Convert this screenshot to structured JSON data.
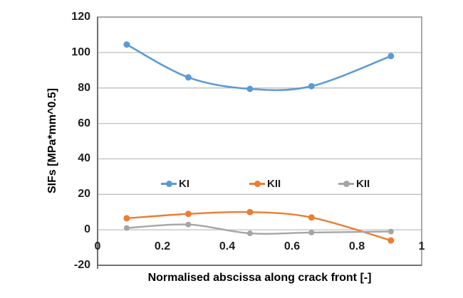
{
  "chart_data": {
    "type": "line",
    "title": "",
    "xlabel": "Normalised abscissa along crack front [-]",
    "ylabel": "SIFs [MPa*mm^0.5]",
    "xlim": [
      0,
      1
    ],
    "ylim": [
      -20,
      120
    ],
    "grid": "horizontal-only",
    "smoothed_lines": true,
    "legend_position": "inside-plot-middle",
    "x": [
      0.09,
      0.28,
      0.47,
      0.66,
      0.905
    ],
    "series": [
      {
        "name": "KI",
        "color": "#5B9BD5",
        "values": [
          104.5,
          86,
          79.5,
          81,
          98
        ]
      },
      {
        "name": "KII",
        "color": "#ED7D31",
        "values": [
          6.5,
          9,
          10,
          7,
          -6
        ]
      },
      {
        "name": "KII",
        "color": "#A5A5A5",
        "values": [
          1,
          3,
          -2,
          -1.5,
          -1
        ]
      }
    ],
    "x_tick_labels": [
      "0",
      "0.2",
      "0.4",
      "0.6",
      "0.8",
      "1"
    ],
    "x_tick_values": [
      0,
      0.2,
      0.4,
      0.6,
      0.8,
      1
    ],
    "y_tick_labels": [
      "120",
      "100",
      "80",
      "60",
      "40",
      "20",
      "0",
      "-20"
    ],
    "y_tick_values": [
      120,
      100,
      80,
      60,
      40,
      20,
      0,
      -20
    ],
    "colors": {
      "gridline": "#BFBFBF",
      "plot_border": "#8F8F8F",
      "axis_line": "#5A5A5A",
      "text": "#1F1F1F"
    }
  }
}
